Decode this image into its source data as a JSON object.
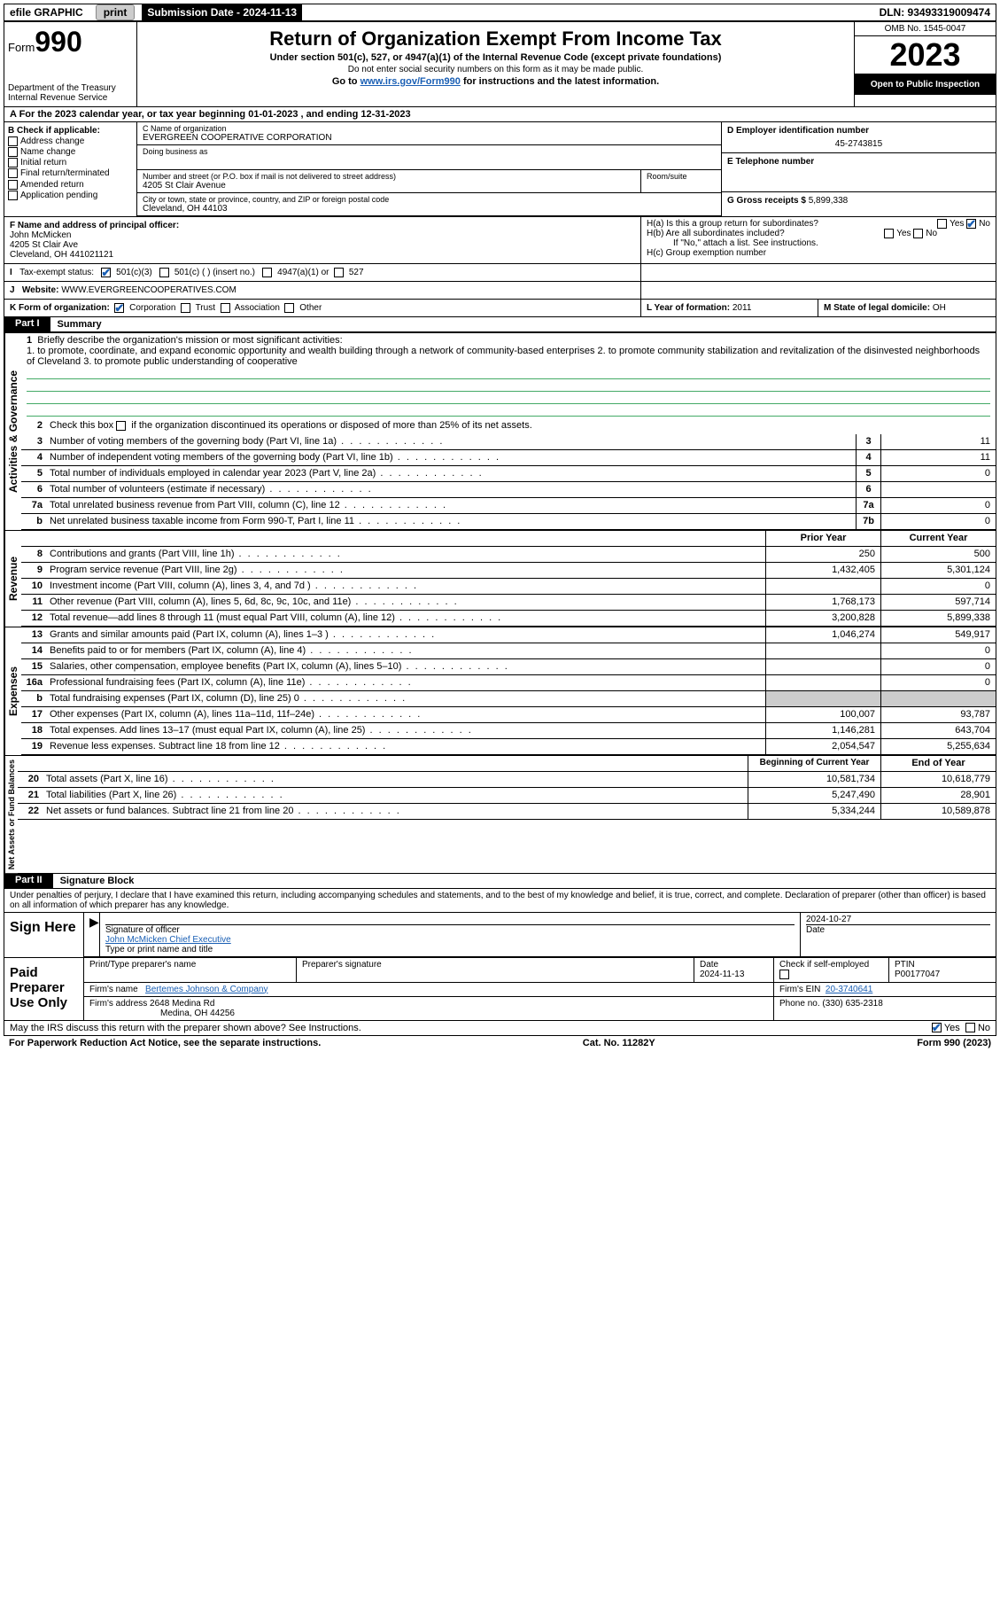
{
  "top_bar": {
    "efile": "efile GRAPHIC",
    "print": "print",
    "submission": "Submission Date - 2024-11-13",
    "dln": "DLN: 93493319009474"
  },
  "header": {
    "form_prefix": "Form",
    "form_number": "990",
    "title": "Return of Organization Exempt From Income Tax",
    "sub1": "Under section 501(c), 527, or 4947(a)(1) of the Internal Revenue Code (except private foundations)",
    "sub2": "Do not enter social security numbers on this form as it may be made public.",
    "sub3_pre": "Go to ",
    "sub3_link": "www.irs.gov/Form990",
    "sub3_post": " for instructions and the latest information.",
    "dept": "Department of the Treasury",
    "irs": "Internal Revenue Service",
    "omb": "OMB No. 1545-0047",
    "year": "2023",
    "inspection": "Open to Public Inspection"
  },
  "row_a": {
    "text_pre": "A For the 2023 calendar year, or tax year beginning ",
    "begin": "01-01-2023",
    "mid": " , and ending ",
    "end": "12-31-2023"
  },
  "box_b": {
    "label": "B Check if applicable:",
    "items": [
      "Address change",
      "Name change",
      "Initial return",
      "Final return/terminated",
      "Amended return",
      "Application pending"
    ]
  },
  "box_c": {
    "name_lbl": "C Name of organization",
    "name": "EVERGREEN COOPERATIVE CORPORATION",
    "dba_lbl": "Doing business as",
    "street_lbl": "Number and street (or P.O. box if mail is not delivered to street address)",
    "room_lbl": "Room/suite",
    "street": "4205 St Clair Avenue",
    "city_lbl": "City or town, state or province, country, and ZIP or foreign postal code",
    "city": "Cleveland, OH  44103"
  },
  "box_d": {
    "lbl": "D Employer identification number",
    "val": "45-2743815"
  },
  "box_e": {
    "lbl": "E Telephone number",
    "val": ""
  },
  "box_g": {
    "lbl": "G Gross receipts $",
    "val": "5,899,338"
  },
  "box_f": {
    "lbl": "F Name and address of principal officer:",
    "name": "John McMicken",
    "street": "4205 St Clair Ave",
    "city": "Cleveland, OH  441021121"
  },
  "box_h": {
    "a": "H(a)  Is this a group return for subordinates?",
    "b": "H(b)  Are all subordinates included?",
    "b_note": "If \"No,\" attach a list. See instructions.",
    "c": "H(c)  Group exemption number ",
    "yes": "Yes",
    "no": "No"
  },
  "box_i": {
    "lbl": "Tax-exempt status:",
    "opt1": "501(c)(3)",
    "opt2": "501(c) (  ) (insert no.)",
    "opt3": "4947(a)(1) or",
    "opt4": "527"
  },
  "box_j": {
    "lbl": "Website: ",
    "val": "WWW.EVERGREENCOOPERATIVES.COM"
  },
  "box_k": {
    "lbl": "K Form of organization:",
    "opts": [
      "Corporation",
      "Trust",
      "Association",
      "Other"
    ]
  },
  "box_l": {
    "lbl": "L Year of formation:",
    "val": "2011"
  },
  "box_m": {
    "lbl": "M State of legal domicile:",
    "val": "OH"
  },
  "part1": {
    "num": "Part I",
    "title": "Summary"
  },
  "vlabels": {
    "gov": "Activities & Governance",
    "rev": "Revenue",
    "exp": "Expenses",
    "net": "Net Assets or Fund Balances"
  },
  "mission": {
    "lbl": "Briefly describe the organization's mission or most significant activities:",
    "text": "1. to promote, coordinate, and expand economic opportunity and wealth building through a network of community-based enterprises 2. to promote community stabilization and revitalization of the disinvested neighborhoods of Cleveland 3. to promote public understanding of cooperative"
  },
  "line2": "Check this box  if the organization discontinued its operations or disposed of more than 25% of its net assets.",
  "lines_single": [
    {
      "n": "3",
      "d": "Number of voting members of the governing body (Part VI, line 1a)",
      "c": "3",
      "v": "11"
    },
    {
      "n": "4",
      "d": "Number of independent voting members of the governing body (Part VI, line 1b)",
      "c": "4",
      "v": "11"
    },
    {
      "n": "5",
      "d": "Total number of individuals employed in calendar year 2023 (Part V, line 2a)",
      "c": "5",
      "v": "0"
    },
    {
      "n": "6",
      "d": "Total number of volunteers (estimate if necessary)",
      "c": "6",
      "v": ""
    },
    {
      "n": "7a",
      "d": "Total unrelated business revenue from Part VIII, column (C), line 12",
      "c": "7a",
      "v": "0"
    },
    {
      "n": "b",
      "d": "Net unrelated business taxable income from Form 990-T, Part I, line 11",
      "c": "7b",
      "v": "0"
    }
  ],
  "col_hdrs": {
    "prior": "Prior Year",
    "current": "Current Year",
    "begin": "Beginning of Current Year",
    "end": "End of Year"
  },
  "revenue": [
    {
      "n": "8",
      "d": "Contributions and grants (Part VIII, line 1h)",
      "p": "250",
      "c": "500"
    },
    {
      "n": "9",
      "d": "Program service revenue (Part VIII, line 2g)",
      "p": "1,432,405",
      "c": "5,301,124"
    },
    {
      "n": "10",
      "d": "Investment income (Part VIII, column (A), lines 3, 4, and 7d )",
      "p": "",
      "c": "0"
    },
    {
      "n": "11",
      "d": "Other revenue (Part VIII, column (A), lines 5, 6d, 8c, 9c, 10c, and 11e)",
      "p": "1,768,173",
      "c": "597,714"
    },
    {
      "n": "12",
      "d": "Total revenue—add lines 8 through 11 (must equal Part VIII, column (A), line 12)",
      "p": "3,200,828",
      "c": "5,899,338"
    }
  ],
  "expenses": [
    {
      "n": "13",
      "d": "Grants and similar amounts paid (Part IX, column (A), lines 1–3 )",
      "p": "1,046,274",
      "c": "549,917"
    },
    {
      "n": "14",
      "d": "Benefits paid to or for members (Part IX, column (A), line 4)",
      "p": "",
      "c": "0"
    },
    {
      "n": "15",
      "d": "Salaries, other compensation, employee benefits (Part IX, column (A), lines 5–10)",
      "p": "",
      "c": "0"
    },
    {
      "n": "16a",
      "d": "Professional fundraising fees (Part IX, column (A), line 11e)",
      "p": "",
      "c": "0"
    },
    {
      "n": "b",
      "d": "Total fundraising expenses (Part IX, column (D), line 25) 0",
      "p": "—",
      "c": "—"
    },
    {
      "n": "17",
      "d": "Other expenses (Part IX, column (A), lines 11a–11d, 11f–24e)",
      "p": "100,007",
      "c": "93,787"
    },
    {
      "n": "18",
      "d": "Total expenses. Add lines 13–17 (must equal Part IX, column (A), line 25)",
      "p": "1,146,281",
      "c": "643,704"
    },
    {
      "n": "19",
      "d": "Revenue less expenses. Subtract line 18 from line 12",
      "p": "2,054,547",
      "c": "5,255,634"
    }
  ],
  "netassets": [
    {
      "n": "20",
      "d": "Total assets (Part X, line 16)",
      "p": "10,581,734",
      "c": "10,618,779"
    },
    {
      "n": "21",
      "d": "Total liabilities (Part X, line 26)",
      "p": "5,247,490",
      "c": "28,901"
    },
    {
      "n": "22",
      "d": "Net assets or fund balances. Subtract line 21 from line 20",
      "p": "5,334,244",
      "c": "10,589,878"
    }
  ],
  "part2": {
    "num": "Part II",
    "title": "Signature Block"
  },
  "perjury": "Under penalties of perjury, I declare that I have examined this return, including accompanying schedules and statements, and to the best of my knowledge and belief, it is true, correct, and complete. Declaration of preparer (other than officer) is based on all information of which preparer has any knowledge.",
  "sign": {
    "here": "Sign Here",
    "sig_lbl": "Signature of officer",
    "name": "John McMicken Chief Executive",
    "type_lbl": "Type or print name and title",
    "date_lbl": "Date",
    "date": "2024-10-27"
  },
  "paid": {
    "lbl": "Paid Preparer Use Only",
    "print_lbl": "Print/Type preparer's name",
    "sig_lbl": "Preparer's signature",
    "date_lbl": "Date",
    "date": "2024-11-13",
    "check_lbl": "Check        if self-employed",
    "ptin_lbl": "PTIN",
    "ptin": "P00177047",
    "firm_name_lbl": "Firm's name ",
    "firm_name": "Bertemes Johnson & Company",
    "firm_ein_lbl": "Firm's EIN ",
    "firm_ein": "20-3740641",
    "firm_addr_lbl": "Firm's address ",
    "firm_addr": "2648 Medina Rd",
    "firm_city": "Medina, OH  44256",
    "phone_lbl": "Phone no.",
    "phone": "(330) 635-2318"
  },
  "discuss": {
    "text": "May the IRS discuss this return with the preparer shown above? See Instructions.",
    "yes": "Yes",
    "no": "No"
  },
  "footer": {
    "left": "For Paperwork Reduction Act Notice, see the separate instructions.",
    "mid": "Cat. No. 11282Y",
    "right": "Form 990 (2023)"
  },
  "colors": {
    "link": "#1a5fb4",
    "check": "#1a5fb4",
    "mission_line": "#4a6"
  }
}
